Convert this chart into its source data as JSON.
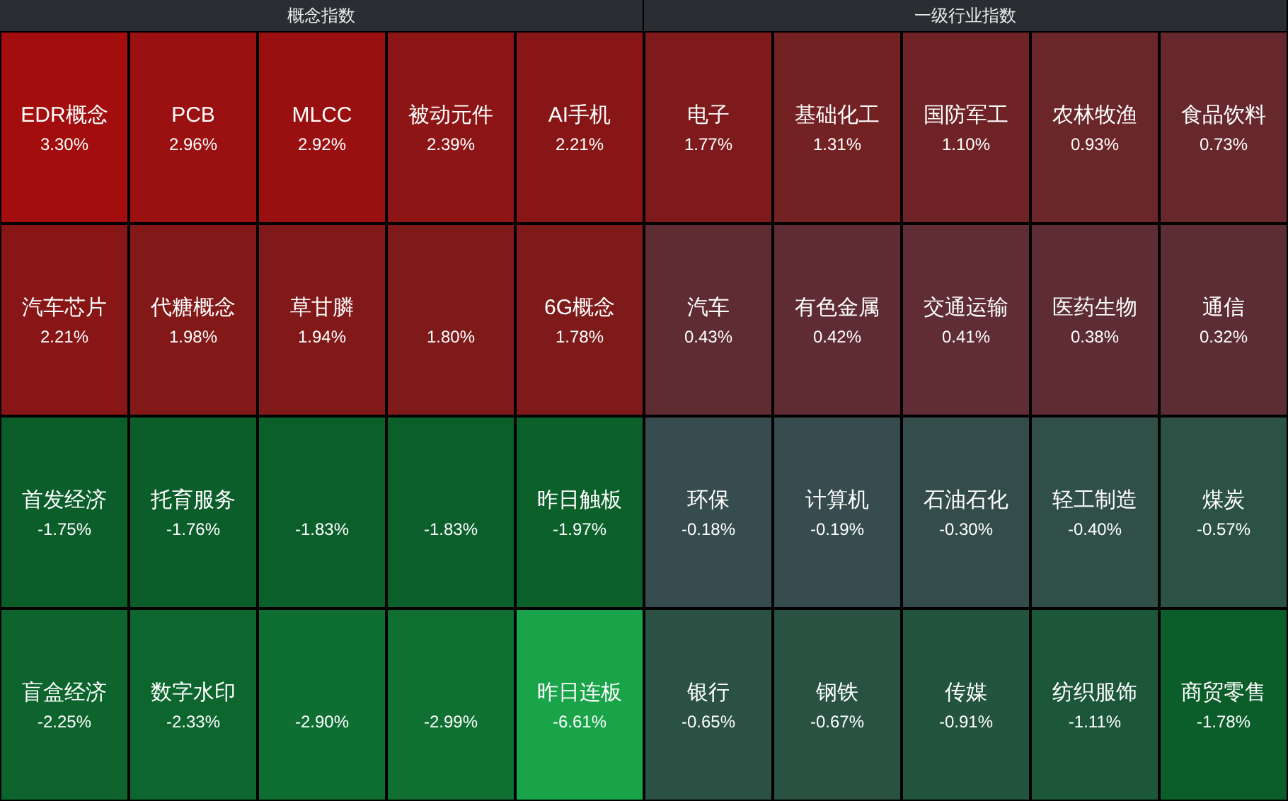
{
  "chart_data": [
    {
      "type": "other",
      "title": "概念指数",
      "categories": [
        "EDR概念",
        "PCB",
        "MLCC",
        "被动元件",
        "AI手机",
        "汽车芯片",
        "代糖概念",
        "草甘膦",
        null,
        "6G概念",
        "首发经济",
        "托育服务",
        null,
        null,
        "昨日触板",
        "盲盒经济",
        "数字水印",
        null,
        null,
        "昨日连板"
      ],
      "values": [
        3.3,
        2.96,
        2.92,
        2.39,
        2.21,
        2.21,
        1.98,
        1.94,
        1.8,
        1.78,
        -1.75,
        -1.76,
        -1.83,
        -1.83,
        -1.97,
        -2.25,
        -2.33,
        -2.9,
        -2.99,
        -6.61
      ],
      "value_labels": [
        "3.30%",
        "2.96%",
        "2.92%",
        "2.39%",
        "2.21%",
        "2.21%",
        "1.98%",
        "1.94%",
        "1.80%",
        "1.78%",
        "-1.75%",
        "-1.76%",
        "-1.83%",
        "-1.83%",
        "-1.97%",
        "-2.25%",
        "-2.33%",
        "-2.90%",
        "-2.99%",
        "-6.61%"
      ]
    },
    {
      "type": "other",
      "title": "一级行业指数",
      "categories": [
        "电子",
        "基础化工",
        "国防军工",
        "农林牧渔",
        "食品饮料",
        "汽车",
        "有色金属",
        "交通运输",
        "医药生物",
        "通信",
        "环保",
        "计算机",
        "石油石化",
        "轻工制造",
        "煤炭",
        "银行",
        "钢铁",
        "传媒",
        "纺织服饰",
        "商贸零售"
      ],
      "values": [
        1.77,
        1.31,
        1.1,
        0.93,
        0.73,
        0.43,
        0.42,
        0.41,
        0.38,
        0.32,
        -0.18,
        -0.19,
        -0.3,
        -0.4,
        -0.57,
        -0.65,
        -0.67,
        -0.91,
        -1.11,
        -1.78
      ],
      "value_labels": [
        "1.77%",
        "1.31%",
        "1.10%",
        "0.93%",
        "0.73%",
        "0.43%",
        "0.42%",
        "0.41%",
        "0.38%",
        "0.32%",
        "-0.18%",
        "-0.19%",
        "-0.30%",
        "-0.40%",
        "-0.57%",
        "-0.65%",
        "-0.67%",
        "-0.91%",
        "-1.11%",
        "-1.78%"
      ]
    }
  ]
}
